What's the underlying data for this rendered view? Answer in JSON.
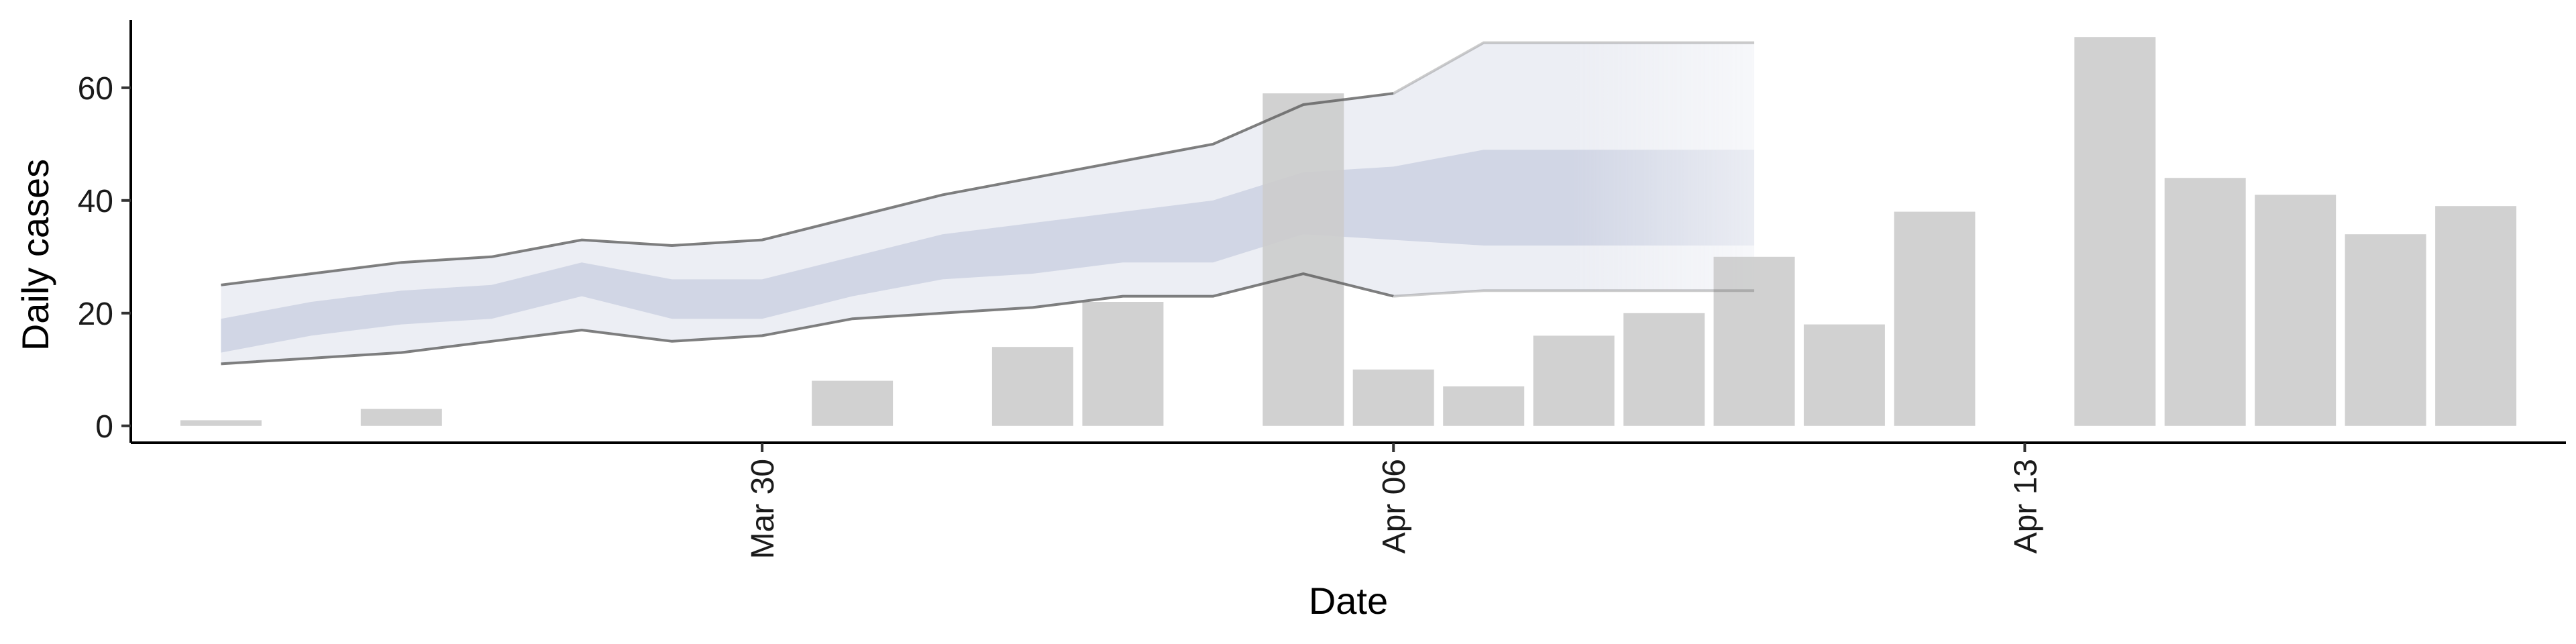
{
  "chart_data": {
    "type": "bar",
    "xlabel": "Date",
    "ylabel": "Daily cases",
    "x_ticks": [
      "2020-03-30",
      "2020-04-06",
      "2020-04-13"
    ],
    "x_tick_labels": [
      "Mar 30",
      "Apr 06",
      "Apr 13"
    ],
    "y_ticks": [
      0,
      20,
      40,
      60
    ],
    "xlim": [
      "2020-03-23",
      "2020-04-19"
    ],
    "ylim": [
      -3,
      72
    ],
    "grid": false,
    "legend": "none",
    "bar_color": "#cccccc",
    "band_color": "#bcc2d8",
    "line_color": "#555555",
    "bars": [
      {
        "date": "2020-03-24",
        "value": 1
      },
      {
        "date": "2020-03-26",
        "value": 3
      },
      {
        "date": "2020-03-31",
        "value": 8
      },
      {
        "date": "2020-04-02",
        "value": 14
      },
      {
        "date": "2020-04-03",
        "value": 22
      },
      {
        "date": "2020-04-05",
        "value": 59
      },
      {
        "date": "2020-04-06",
        "value": 10
      },
      {
        "date": "2020-04-07",
        "value": 7
      },
      {
        "date": "2020-04-08",
        "value": 16
      },
      {
        "date": "2020-04-09",
        "value": 20
      },
      {
        "date": "2020-04-10",
        "value": 30
      },
      {
        "date": "2020-04-11",
        "value": 18
      },
      {
        "date": "2020-04-12",
        "value": 38
      },
      {
        "date": "2020-04-14",
        "value": 69
      },
      {
        "date": "2020-04-15",
        "value": 44
      },
      {
        "date": "2020-04-16",
        "value": 41
      },
      {
        "date": "2020-04-17",
        "value": 34
      },
      {
        "date": "2020-04-18",
        "value": 39
      }
    ],
    "forecast": {
      "dates": [
        "2020-03-24",
        "2020-03-25",
        "2020-03-26",
        "2020-03-27",
        "2020-03-28",
        "2020-03-29",
        "2020-03-30",
        "2020-03-31",
        "2020-04-01",
        "2020-04-02",
        "2020-04-03",
        "2020-04-04",
        "2020-04-05",
        "2020-04-06",
        "2020-04-07",
        "2020-04-08",
        "2020-04-09",
        "2020-04-10"
      ],
      "lower90": [
        11,
        12,
        13,
        15,
        17,
        15,
        16,
        19,
        20,
        21,
        23,
        23,
        27,
        23,
        24,
        24,
        24,
        24
      ],
      "upper90": [
        25,
        27,
        29,
        30,
        33,
        32,
        33,
        37,
        41,
        44,
        47,
        50,
        57,
        59,
        68,
        68,
        68,
        68
      ],
      "lower50": [
        13,
        16,
        18,
        19,
        23,
        19,
        19,
        23,
        26,
        27,
        29,
        29,
        34,
        33,
        32,
        32,
        32,
        32
      ],
      "upper50": [
        19,
        22,
        24,
        25,
        29,
        26,
        26,
        30,
        34,
        36,
        38,
        40,
        45,
        46,
        49,
        49,
        49,
        49
      ],
      "solid_until": "2020-04-06",
      "fade_from": "2020-04-08"
    }
  }
}
